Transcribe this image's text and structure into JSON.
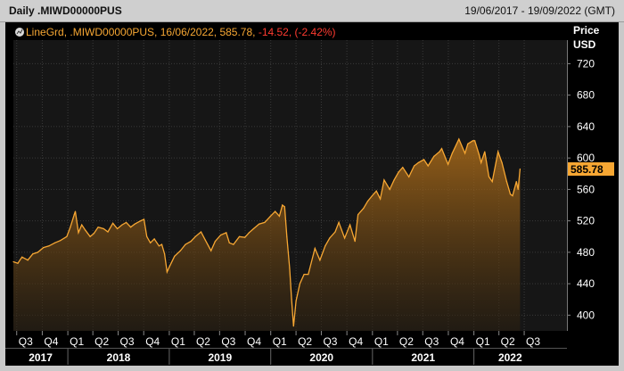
{
  "header": {
    "title": "Daily .MIWD00000PUS",
    "date_range": "19/06/2017 - 19/09/2022 (GMT)"
  },
  "legend": {
    "icon": "line-chart-icon",
    "parts": [
      {
        "text": "LineGrd, .MIWD00000PUS, 16/06/2022, 585.78,",
        "color": "#f7a733"
      },
      {
        "text": " -14.52, (-2.42%)",
        "color": "#ff3b30"
      }
    ]
  },
  "colors": {
    "background": "#000000",
    "plot_background": "#161616",
    "line": "#f7a733",
    "grid": "#3a3a3a",
    "last_value_tag": "#f7a733",
    "axis_text": "#ffffff",
    "negative_change": "#ff3b30"
  },
  "chart_data": {
    "type": "area",
    "title": "Daily .MIWD00000PUS",
    "ylabel": "Price USD",
    "ylabel_lines": [
      "Price",
      "USD"
    ],
    "y_ticks": [
      400,
      440,
      480,
      520,
      560,
      600,
      640,
      680,
      720
    ],
    "ylim": [
      380,
      750
    ],
    "x_range": [
      "2017-06-19",
      "2022-09-19"
    ],
    "last_value_label": "585.78",
    "grid": true,
    "quarters": [
      {
        "label": "Q3",
        "date": "2017-07-01"
      },
      {
        "label": "Q4",
        "date": "2017-10-01"
      },
      {
        "label": "Q1",
        "date": "2018-01-01"
      },
      {
        "label": "Q2",
        "date": "2018-04-01"
      },
      {
        "label": "Q3",
        "date": "2018-07-01"
      },
      {
        "label": "Q4",
        "date": "2018-10-01"
      },
      {
        "label": "Q1",
        "date": "2019-01-01"
      },
      {
        "label": "Q2",
        "date": "2019-04-01"
      },
      {
        "label": "Q3",
        "date": "2019-07-01"
      },
      {
        "label": "Q4",
        "date": "2019-10-01"
      },
      {
        "label": "Q1",
        "date": "2020-01-01"
      },
      {
        "label": "Q2",
        "date": "2020-04-01"
      },
      {
        "label": "Q3",
        "date": "2020-07-01"
      },
      {
        "label": "Q4",
        "date": "2020-10-01"
      },
      {
        "label": "Q1",
        "date": "2021-01-01"
      },
      {
        "label": "Q2",
        "date": "2021-04-01"
      },
      {
        "label": "Q3",
        "date": "2021-07-01"
      },
      {
        "label": "Q4",
        "date": "2021-10-01"
      },
      {
        "label": "Q1",
        "date": "2022-01-01"
      },
      {
        "label": "Q2",
        "date": "2022-04-01"
      },
      {
        "label": "Q3",
        "date": "2022-07-01"
      }
    ],
    "years": [
      {
        "label": "2017",
        "date": "2017-06-19"
      },
      {
        "label": "2018",
        "date": "2018-01-01"
      },
      {
        "label": "2019",
        "date": "2019-01-01"
      },
      {
        "label": "2020",
        "date": "2020-01-01"
      },
      {
        "label": "2021",
        "date": "2021-01-01"
      },
      {
        "label": "2022",
        "date": "2022-01-01"
      }
    ],
    "series": [
      {
        "values": [
          [
            "2017-06-19",
            468
          ],
          [
            "2017-07-05",
            466
          ],
          [
            "2017-07-20",
            474
          ],
          [
            "2017-08-10",
            470
          ],
          [
            "2017-08-28",
            478
          ],
          [
            "2017-09-15",
            480
          ],
          [
            "2017-10-05",
            486
          ],
          [
            "2017-10-25",
            488
          ],
          [
            "2017-11-15",
            492
          ],
          [
            "2017-12-05",
            495
          ],
          [
            "2017-12-28",
            500
          ],
          [
            "2018-01-10",
            512
          ],
          [
            "2018-01-24",
            528
          ],
          [
            "2018-01-28",
            532
          ],
          [
            "2018-02-08",
            505
          ],
          [
            "2018-02-20",
            515
          ],
          [
            "2018-03-05",
            508
          ],
          [
            "2018-03-22",
            500
          ],
          [
            "2018-04-05",
            504
          ],
          [
            "2018-04-20",
            512
          ],
          [
            "2018-05-10",
            510
          ],
          [
            "2018-05-25",
            506
          ],
          [
            "2018-06-12",
            517
          ],
          [
            "2018-06-28",
            510
          ],
          [
            "2018-07-15",
            515
          ],
          [
            "2018-07-30",
            518
          ],
          [
            "2018-08-15",
            512
          ],
          [
            "2018-08-30",
            516
          ],
          [
            "2018-09-20",
            520
          ],
          [
            "2018-10-02",
            522
          ],
          [
            "2018-10-12",
            500
          ],
          [
            "2018-10-25",
            492
          ],
          [
            "2018-11-08",
            497
          ],
          [
            "2018-11-25",
            488
          ],
          [
            "2018-12-05",
            490
          ],
          [
            "2018-12-15",
            478
          ],
          [
            "2018-12-24",
            455
          ],
          [
            "2019-01-02",
            462
          ],
          [
            "2019-01-20",
            475
          ],
          [
            "2019-02-10",
            482
          ],
          [
            "2019-02-28",
            490
          ],
          [
            "2019-03-20",
            494
          ],
          [
            "2019-04-05",
            500
          ],
          [
            "2019-04-25",
            506
          ],
          [
            "2019-05-10",
            496
          ],
          [
            "2019-05-31",
            482
          ],
          [
            "2019-06-15",
            494
          ],
          [
            "2019-07-05",
            502
          ],
          [
            "2019-07-25",
            505
          ],
          [
            "2019-08-05",
            492
          ],
          [
            "2019-08-20",
            490
          ],
          [
            "2019-09-10",
            500
          ],
          [
            "2019-09-30",
            499
          ],
          [
            "2019-10-15",
            505
          ],
          [
            "2019-10-31",
            510
          ],
          [
            "2019-11-20",
            516
          ],
          [
            "2019-12-10",
            518
          ],
          [
            "2019-12-31",
            526
          ],
          [
            "2020-01-17",
            532
          ],
          [
            "2020-02-01",
            526
          ],
          [
            "2020-02-12",
            540
          ],
          [
            "2020-02-20",
            538
          ],
          [
            "2020-02-28",
            500
          ],
          [
            "2020-03-09",
            460
          ],
          [
            "2020-03-16",
            420
          ],
          [
            "2020-03-23",
            386
          ],
          [
            "2020-04-01",
            418
          ],
          [
            "2020-04-15",
            440
          ],
          [
            "2020-04-30",
            452
          ],
          [
            "2020-05-15",
            452
          ],
          [
            "2020-06-08",
            485
          ],
          [
            "2020-06-26",
            470
          ],
          [
            "2020-07-15",
            488
          ],
          [
            "2020-07-31",
            498
          ],
          [
            "2020-08-20",
            506
          ],
          [
            "2020-09-02",
            518
          ],
          [
            "2020-09-23",
            498
          ],
          [
            "2020-10-12",
            515
          ],
          [
            "2020-10-30",
            494
          ],
          [
            "2020-11-10",
            528
          ],
          [
            "2020-11-30",
            536
          ],
          [
            "2020-12-15",
            545
          ],
          [
            "2020-12-31",
            552
          ],
          [
            "2021-01-15",
            558
          ],
          [
            "2021-01-29",
            548
          ],
          [
            "2021-02-12",
            572
          ],
          [
            "2021-03-04",
            560
          ],
          [
            "2021-03-20",
            572
          ],
          [
            "2021-04-05",
            582
          ],
          [
            "2021-04-20",
            588
          ],
          [
            "2021-05-12",
            576
          ],
          [
            "2021-05-31",
            590
          ],
          [
            "2021-06-15",
            594
          ],
          [
            "2021-07-05",
            598
          ],
          [
            "2021-07-20",
            590
          ],
          [
            "2021-08-10",
            602
          ],
          [
            "2021-08-30",
            608
          ],
          [
            "2021-09-07",
            612
          ],
          [
            "2021-09-30",
            592
          ],
          [
            "2021-10-15",
            606
          ],
          [
            "2021-11-08",
            624
          ],
          [
            "2021-11-30",
            606
          ],
          [
            "2021-12-10",
            618
          ],
          [
            "2021-12-28",
            622
          ],
          [
            "2022-01-04",
            622
          ],
          [
            "2022-01-20",
            604
          ],
          [
            "2022-01-27",
            594
          ],
          [
            "2022-02-09",
            608
          ],
          [
            "2022-02-24",
            576
          ],
          [
            "2022-03-08",
            570
          ],
          [
            "2022-03-29",
            608
          ],
          [
            "2022-04-12",
            594
          ],
          [
            "2022-04-29",
            570
          ],
          [
            "2022-05-12",
            554
          ],
          [
            "2022-05-20",
            552
          ],
          [
            "2022-06-03",
            570
          ],
          [
            "2022-06-09",
            560
          ],
          [
            "2022-06-16",
            586
          ]
        ]
      }
    ]
  }
}
